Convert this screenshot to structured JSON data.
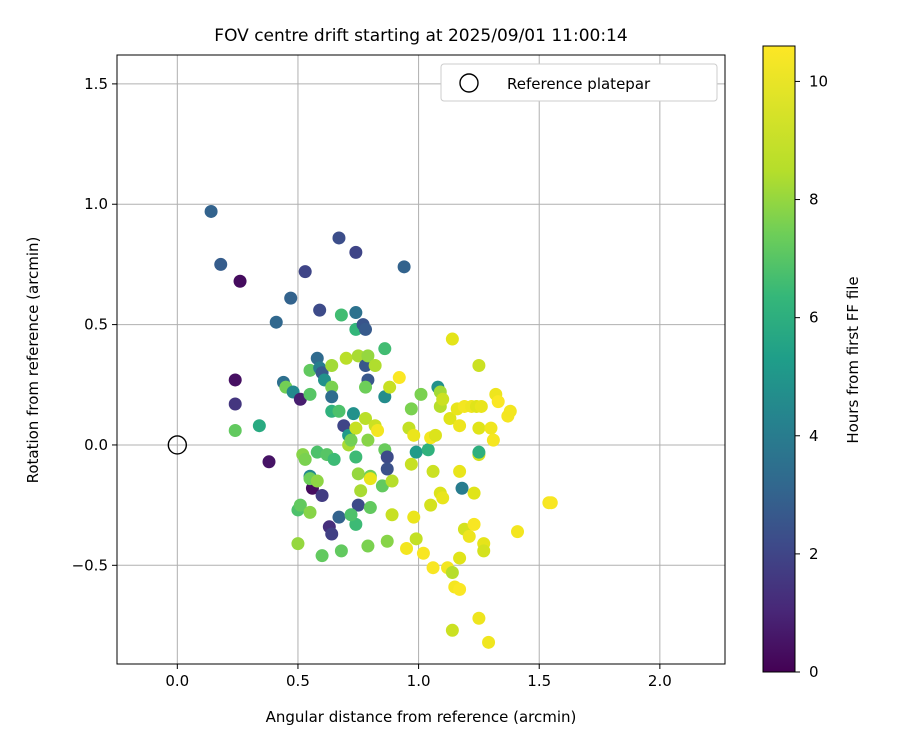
{
  "chart_data": {
    "type": "scatter",
    "title": "FOV centre drift starting at 2025/09/01 11:00:14",
    "xlabel": "Angular distance from reference (arcmin)",
    "ylabel": "Rotation from reference (arcmin)",
    "xlim": [
      -0.25,
      2.27
    ],
    "ylim": [
      -0.91,
      1.62
    ],
    "xticks": [
      0.0,
      0.5,
      1.0,
      1.5,
      2.0
    ],
    "xtick_labels": [
      "0.0",
      "0.5",
      "1.0",
      "1.5",
      "2.0"
    ],
    "yticks": [
      -0.5,
      0.0,
      0.5,
      1.0,
      1.5
    ],
    "ytick_labels": [
      "−0.5",
      "0.0",
      "0.5",
      "1.0",
      "1.5"
    ],
    "grid": true,
    "legend": {
      "position": "top-right",
      "entries": [
        {
          "label": "Reference platepar",
          "marker": "open-circle"
        }
      ]
    },
    "reference_point": {
      "x": 0.0,
      "y": 0.0
    },
    "colorbar": {
      "label": "Hours from first FF file",
      "range": [
        0,
        10.6
      ],
      "ticks": [
        0,
        2,
        4,
        6,
        8,
        10
      ],
      "tick_labels": [
        "0",
        "2",
        "4",
        "6",
        "8",
        "10"
      ],
      "colormap": "viridis"
    },
    "series": [
      {
        "name": "FOV centre drift",
        "points": [
          {
            "x": 0.14,
            "y": 0.97,
            "h": 3.0
          },
          {
            "x": 0.18,
            "y": 0.75,
            "h": 2.8
          },
          {
            "x": 0.26,
            "y": 0.68,
            "h": 0.3
          },
          {
            "x": 0.24,
            "y": 0.27,
            "h": 0.4
          },
          {
            "x": 0.24,
            "y": 0.17,
            "h": 1.5
          },
          {
            "x": 0.24,
            "y": 0.06,
            "h": 7.2
          },
          {
            "x": 0.34,
            "y": 0.08,
            "h": 5.8
          },
          {
            "x": 0.38,
            "y": -0.07,
            "h": 0.5
          },
          {
            "x": 0.41,
            "y": 0.51,
            "h": 3.2
          },
          {
            "x": 0.47,
            "y": 0.61,
            "h": 3.0
          },
          {
            "x": 0.44,
            "y": 0.26,
            "h": 3.5
          },
          {
            "x": 0.45,
            "y": 0.24,
            "h": 7.5
          },
          {
            "x": 0.48,
            "y": 0.22,
            "h": 4.5
          },
          {
            "x": 0.51,
            "y": 0.19,
            "h": 0.8
          },
          {
            "x": 0.53,
            "y": 0.72,
            "h": 2.0
          },
          {
            "x": 0.5,
            "y": -0.41,
            "h": 8.0
          },
          {
            "x": 0.55,
            "y": 0.31,
            "h": 7.2
          },
          {
            "x": 0.55,
            "y": 0.21,
            "h": 7.0
          },
          {
            "x": 0.52,
            "y": -0.04,
            "h": 7.8
          },
          {
            "x": 0.53,
            "y": -0.06,
            "h": 7.6
          },
          {
            "x": 0.55,
            "y": -0.13,
            "h": 4.5
          },
          {
            "x": 0.56,
            "y": -0.18,
            "h": 0.3
          },
          {
            "x": 0.55,
            "y": -0.14,
            "h": 7.4
          },
          {
            "x": 0.5,
            "y": -0.27,
            "h": 6.8
          },
          {
            "x": 0.51,
            "y": -0.25,
            "h": 7.2
          },
          {
            "x": 0.55,
            "y": -0.28,
            "h": 7.8
          },
          {
            "x": 0.58,
            "y": 0.36,
            "h": 3.3
          },
          {
            "x": 0.59,
            "y": 0.32,
            "h": 4.0
          },
          {
            "x": 0.6,
            "y": 0.3,
            "h": 2.7
          },
          {
            "x": 0.61,
            "y": 0.27,
            "h": 4.8
          },
          {
            "x": 0.59,
            "y": 0.56,
            "h": 2.2
          },
          {
            "x": 0.58,
            "y": -0.03,
            "h": 6.8
          },
          {
            "x": 0.58,
            "y": -0.15,
            "h": 7.9
          },
          {
            "x": 0.6,
            "y": -0.21,
            "h": 1.7
          },
          {
            "x": 0.6,
            "y": -0.46,
            "h": 7.2
          },
          {
            "x": 0.62,
            "y": -0.04,
            "h": 7.0
          },
          {
            "x": 0.64,
            "y": 0.33,
            "h": 8.2
          },
          {
            "x": 0.64,
            "y": 0.24,
            "h": 7.6
          },
          {
            "x": 0.64,
            "y": 0.2,
            "h": 3.4
          },
          {
            "x": 0.64,
            "y": 0.14,
            "h": 6.1
          },
          {
            "x": 0.65,
            "y": -0.06,
            "h": 6.5
          },
          {
            "x": 0.63,
            "y": -0.34,
            "h": 1.3
          },
          {
            "x": 0.64,
            "y": -0.37,
            "h": 1.8
          },
          {
            "x": 0.67,
            "y": 0.86,
            "h": 2.3
          },
          {
            "x": 0.68,
            "y": 0.54,
            "h": 6.6
          },
          {
            "x": 0.67,
            "y": 0.14,
            "h": 6.8
          },
          {
            "x": 0.69,
            "y": 0.08,
            "h": 2.0
          },
          {
            "x": 0.7,
            "y": 0.36,
            "h": 8.6
          },
          {
            "x": 0.71,
            "y": 0.04,
            "h": 5.2
          },
          {
            "x": 0.71,
            "y": 0.0,
            "h": 8.3
          },
          {
            "x": 0.67,
            "y": -0.3,
            "h": 3.0
          },
          {
            "x": 0.68,
            "y": -0.44,
            "h": 7.2
          },
          {
            "x": 0.72,
            "y": 0.02,
            "h": 7.5
          },
          {
            "x": 0.73,
            "y": 0.13,
            "h": 4.8
          },
          {
            "x": 0.74,
            "y": 0.8,
            "h": 2.0
          },
          {
            "x": 0.74,
            "y": 0.55,
            "h": 3.6
          },
          {
            "x": 0.74,
            "y": 0.48,
            "h": 6.3
          },
          {
            "x": 0.75,
            "y": 0.37,
            "h": 8.3
          },
          {
            "x": 0.74,
            "y": 0.07,
            "h": 8.9
          },
          {
            "x": 0.74,
            "y": -0.05,
            "h": 6.5
          },
          {
            "x": 0.75,
            "y": -0.12,
            "h": 8.0
          },
          {
            "x": 0.76,
            "y": -0.19,
            "h": 8.3
          },
          {
            "x": 0.75,
            "y": -0.25,
            "h": 2.2
          },
          {
            "x": 0.74,
            "y": -0.33,
            "h": 6.5
          },
          {
            "x": 0.72,
            "y": -0.29,
            "h": 6.8
          },
          {
            "x": 0.77,
            "y": 0.5,
            "h": 2.5
          },
          {
            "x": 0.78,
            "y": 0.48,
            "h": 2.7
          },
          {
            "x": 0.78,
            "y": 0.33,
            "h": 2.6
          },
          {
            "x": 0.79,
            "y": 0.37,
            "h": 8.0
          },
          {
            "x": 0.79,
            "y": 0.27,
            "h": 2.6
          },
          {
            "x": 0.78,
            "y": 0.24,
            "h": 7.4
          },
          {
            "x": 0.78,
            "y": 0.11,
            "h": 8.6
          },
          {
            "x": 0.79,
            "y": 0.02,
            "h": 7.8
          },
          {
            "x": 0.8,
            "y": -0.13,
            "h": 7.4
          },
          {
            "x": 0.8,
            "y": -0.14,
            "h": 9.8
          },
          {
            "x": 0.8,
            "y": -0.26,
            "h": 7.2
          },
          {
            "x": 0.79,
            "y": -0.42,
            "h": 7.6
          },
          {
            "x": 0.82,
            "y": 0.33,
            "h": 8.4
          },
          {
            "x": 0.82,
            "y": 0.08,
            "h": 9.0
          },
          {
            "x": 0.83,
            "y": 0.06,
            "h": 10.2
          },
          {
            "x": 0.85,
            "y": -0.17,
            "h": 7.2
          },
          {
            "x": 0.86,
            "y": 0.4,
            "h": 6.6
          },
          {
            "x": 0.86,
            "y": 0.2,
            "h": 4.6
          },
          {
            "x": 0.86,
            "y": -0.02,
            "h": 7.3
          },
          {
            "x": 0.87,
            "y": -0.05,
            "h": 2.2
          },
          {
            "x": 0.87,
            "y": -0.1,
            "h": 2.4
          },
          {
            "x": 0.87,
            "y": -0.4,
            "h": 7.8
          },
          {
            "x": 0.88,
            "y": 0.24,
            "h": 8.9
          },
          {
            "x": 0.89,
            "y": -0.15,
            "h": 8.5
          },
          {
            "x": 0.89,
            "y": -0.29,
            "h": 8.9
          },
          {
            "x": 0.92,
            "y": 0.28,
            "h": 10.5
          },
          {
            "x": 0.94,
            "y": 0.74,
            "h": 3.0
          },
          {
            "x": 0.95,
            "y": -0.43,
            "h": 10.2
          },
          {
            "x": 0.96,
            "y": 0.07,
            "h": 8.8
          },
          {
            "x": 0.97,
            "y": 0.15,
            "h": 7.6
          },
          {
            "x": 0.97,
            "y": -0.08,
            "h": 8.9
          },
          {
            "x": 0.98,
            "y": 0.04,
            "h": 9.9
          },
          {
            "x": 0.98,
            "y": -0.3,
            "h": 9.9
          },
          {
            "x": 0.99,
            "y": -0.39,
            "h": 8.8
          },
          {
            "x": 0.99,
            "y": -0.03,
            "h": 5.2
          },
          {
            "x": 1.01,
            "y": 0.21,
            "h": 7.6
          },
          {
            "x": 1.02,
            "y": -0.45,
            "h": 10.4
          },
          {
            "x": 1.04,
            "y": -0.02,
            "h": 6.1
          },
          {
            "x": 1.05,
            "y": 0.03,
            "h": 10.2
          },
          {
            "x": 1.05,
            "y": -0.25,
            "h": 9.2
          },
          {
            "x": 1.06,
            "y": -0.11,
            "h": 9.0
          },
          {
            "x": 1.06,
            "y": -0.51,
            "h": 10.4
          },
          {
            "x": 1.07,
            "y": 0.04,
            "h": 9.4
          },
          {
            "x": 1.08,
            "y": 0.24,
            "h": 4.8
          },
          {
            "x": 1.09,
            "y": 0.22,
            "h": 8.2
          },
          {
            "x": 1.09,
            "y": 0.16,
            "h": 8.5
          },
          {
            "x": 1.1,
            "y": 0.19,
            "h": 9.0
          },
          {
            "x": 1.09,
            "y": -0.2,
            "h": 9.4
          },
          {
            "x": 1.1,
            "y": -0.22,
            "h": 9.8
          },
          {
            "x": 1.12,
            "y": -0.51,
            "h": 10.2
          },
          {
            "x": 1.13,
            "y": 0.11,
            "h": 9.5
          },
          {
            "x": 1.14,
            "y": 0.44,
            "h": 9.6
          },
          {
            "x": 1.14,
            "y": -0.53,
            "h": 8.5
          },
          {
            "x": 1.14,
            "y": -0.77,
            "h": 9.0
          },
          {
            "x": 1.15,
            "y": -0.59,
            "h": 10.3
          },
          {
            "x": 1.16,
            "y": 0.15,
            "h": 9.8
          },
          {
            "x": 1.17,
            "y": 0.08,
            "h": 10.0
          },
          {
            "x": 1.17,
            "y": -0.11,
            "h": 9.8
          },
          {
            "x": 1.17,
            "y": -0.47,
            "h": 9.5
          },
          {
            "x": 1.17,
            "y": -0.6,
            "h": 10.5
          },
          {
            "x": 1.18,
            "y": -0.18,
            "h": 4.0
          },
          {
            "x": 1.19,
            "y": 0.16,
            "h": 10.2
          },
          {
            "x": 1.19,
            "y": -0.35,
            "h": 9.2
          },
          {
            "x": 1.21,
            "y": -0.38,
            "h": 10.0
          },
          {
            "x": 1.22,
            "y": 0.16,
            "h": 10.0
          },
          {
            "x": 1.23,
            "y": -0.33,
            "h": 10.4
          },
          {
            "x": 1.23,
            "y": -0.2,
            "h": 9.5
          },
          {
            "x": 1.24,
            "y": 0.16,
            "h": 9.5
          },
          {
            "x": 1.25,
            "y": 0.33,
            "h": 9.0
          },
          {
            "x": 1.25,
            "y": -0.04,
            "h": 9.2
          },
          {
            "x": 1.25,
            "y": -0.03,
            "h": 6.0
          },
          {
            "x": 1.26,
            "y": 0.16,
            "h": 9.8
          },
          {
            "x": 1.25,
            "y": 0.07,
            "h": 9.5
          },
          {
            "x": 1.25,
            "y": -0.72,
            "h": 10.0
          },
          {
            "x": 1.27,
            "y": -0.41,
            "h": 9.7
          },
          {
            "x": 1.27,
            "y": -0.44,
            "h": 9.2
          },
          {
            "x": 1.29,
            "y": -0.82,
            "h": 10.1
          },
          {
            "x": 1.3,
            "y": 0.07,
            "h": 10.1
          },
          {
            "x": 1.31,
            "y": 0.02,
            "h": 10.3
          },
          {
            "x": 1.32,
            "y": 0.21,
            "h": 10.0
          },
          {
            "x": 1.33,
            "y": 0.18,
            "h": 10.5
          },
          {
            "x": 1.37,
            "y": 0.12,
            "h": 10.3
          },
          {
            "x": 1.38,
            "y": 0.14,
            "h": 10.2
          },
          {
            "x": 1.41,
            "y": -0.36,
            "h": 10.2
          },
          {
            "x": 1.54,
            "y": -0.24,
            "h": 10.3
          },
          {
            "x": 1.55,
            "y": -0.24,
            "h": 10.4
          }
        ]
      }
    ]
  }
}
